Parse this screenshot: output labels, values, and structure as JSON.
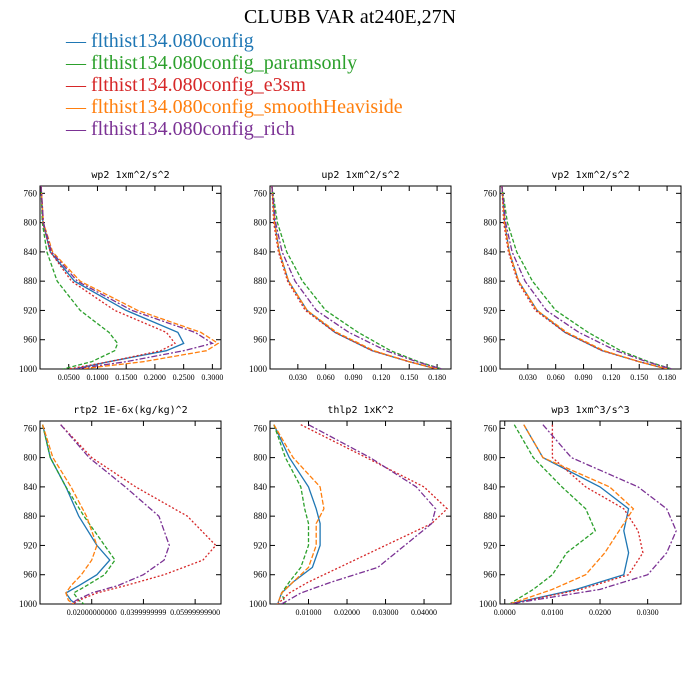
{
  "title": "CLUBB VAR at240E,27N",
  "legend": [
    {
      "label": "flthist134.080config",
      "color": "#1f77b4"
    },
    {
      "label": "flthist134.080config_paramsonly",
      "color": "#2ca02c"
    },
    {
      "label": "flthist134.080config_e3sm",
      "color": "#d62728"
    },
    {
      "label": "flthist134.080config_smoothHeaviside",
      "color": "#ff7f0e"
    },
    {
      "label": "flthist134.080config_rich",
      "color": "#7b3294"
    }
  ],
  "chart_data": [
    {
      "type": "line",
      "title": "wp2  1xm^2/s^2",
      "xlim": [
        0,
        0.315
      ],
      "ylim": [
        1000,
        750
      ],
      "y_inverted": true,
      "xticks": [
        0.05,
        0.1,
        0.15,
        0.2,
        0.25,
        0.3
      ],
      "xtick_labels": [
        "0.0500",
        "0.1000",
        "0.1500",
        "0.2000",
        "0.2500",
        "0.3000"
      ],
      "yticks": [
        760,
        800,
        840,
        880,
        920,
        960,
        1000
      ],
      "ytick_labels": [
        "760",
        "800",
        "840",
        "880",
        "920",
        "960",
        "1000"
      ],
      "series": [
        {
          "name": "flthist134.080config",
          "y": [
            750,
            800,
            840,
            880,
            920,
            950,
            965,
            975,
            990,
            1000
          ],
          "values": [
            0.002,
            0.005,
            0.018,
            0.06,
            0.15,
            0.24,
            0.25,
            0.22,
            0.12,
            0.06
          ]
        },
        {
          "name": "flthist134.080config_paramsonly",
          "y": [
            750,
            800,
            840,
            880,
            920,
            950,
            965,
            975,
            990,
            1000
          ],
          "values": [
            0.002,
            0.004,
            0.012,
            0.03,
            0.07,
            0.12,
            0.135,
            0.13,
            0.09,
            0.04
          ]
        },
        {
          "name": "flthist134.080config_e3sm",
          "y": [
            750,
            800,
            840,
            880,
            920,
            950,
            965,
            975,
            990,
            1000
          ],
          "values": [
            0.002,
            0.005,
            0.018,
            0.055,
            0.13,
            0.22,
            0.235,
            0.21,
            0.12,
            0.05
          ]
        },
        {
          "name": "flthist134.080config_smoothHeaviside",
          "y": [
            750,
            800,
            840,
            880,
            920,
            950,
            965,
            975,
            990,
            1000
          ],
          "values": [
            0.002,
            0.006,
            0.022,
            0.07,
            0.17,
            0.28,
            0.31,
            0.29,
            0.18,
            0.07
          ]
        },
        {
          "name": "flthist134.080config_rich",
          "y": [
            750,
            800,
            840,
            880,
            920,
            950,
            965,
            975,
            990,
            1000
          ],
          "values": [
            0.002,
            0.006,
            0.02,
            0.065,
            0.16,
            0.27,
            0.3,
            0.25,
            0.15,
            0.06
          ]
        }
      ]
    },
    {
      "type": "line",
      "title": "up2  1xm^2/s^2",
      "xlim": [
        0,
        0.195
      ],
      "ylim": [
        1000,
        750
      ],
      "y_inverted": true,
      "xticks": [
        0.03,
        0.06,
        0.09,
        0.12,
        0.15,
        0.18
      ],
      "xtick_labels": [
        "0.030",
        "0.060",
        "0.090",
        "0.120",
        "0.150",
        "0.180"
      ],
      "yticks": [
        760,
        800,
        840,
        880,
        920,
        960,
        1000
      ],
      "ytick_labels": [
        "760",
        "800",
        "840",
        "880",
        "920",
        "960",
        "1000"
      ],
      "series": [
        {
          "name": "flthist134.080config",
          "y": [
            750,
            800,
            840,
            880,
            920,
            950,
            975,
            990,
            1000
          ],
          "values": [
            0.002,
            0.005,
            0.01,
            0.02,
            0.04,
            0.07,
            0.11,
            0.15,
            0.18
          ]
        },
        {
          "name": "flthist134.080config_paramsonly",
          "y": [
            750,
            800,
            840,
            880,
            920,
            950,
            975,
            990,
            1000
          ],
          "values": [
            0.002,
            0.008,
            0.018,
            0.035,
            0.06,
            0.095,
            0.13,
            0.16,
            0.185
          ]
        },
        {
          "name": "flthist134.080config_e3sm",
          "y": [
            750,
            800,
            840,
            880,
            920,
            950,
            975,
            990,
            1000
          ],
          "values": [
            0.002,
            0.004,
            0.009,
            0.019,
            0.038,
            0.07,
            0.11,
            0.15,
            0.18
          ]
        },
        {
          "name": "flthist134.080config_smoothHeaviside",
          "y": [
            750,
            800,
            840,
            880,
            920,
            950,
            975,
            990,
            1000
          ],
          "values": [
            0.002,
            0.005,
            0.01,
            0.02,
            0.04,
            0.072,
            0.112,
            0.15,
            0.18
          ]
        },
        {
          "name": "flthist134.080config_rich",
          "y": [
            750,
            800,
            840,
            880,
            920,
            950,
            975,
            990,
            1000
          ],
          "values": [
            0.002,
            0.006,
            0.013,
            0.027,
            0.05,
            0.085,
            0.125,
            0.158,
            0.185
          ]
        }
      ]
    },
    {
      "type": "line",
      "title": "vp2  1xm^2/s^2",
      "xlim": [
        0,
        0.195
      ],
      "ylim": [
        1000,
        750
      ],
      "y_inverted": true,
      "xticks": [
        0.03,
        0.06,
        0.09,
        0.12,
        0.15,
        0.18
      ],
      "xtick_labels": [
        "0.030",
        "0.060",
        "0.090",
        "0.120",
        "0.150",
        "0.180"
      ],
      "yticks": [
        760,
        800,
        840,
        880,
        920,
        960,
        1000
      ],
      "ytick_labels": [
        "760",
        "800",
        "840",
        "880",
        "920",
        "960",
        "1000"
      ],
      "series": [
        {
          "name": "flthist134.080config",
          "y": [
            750,
            800,
            840,
            880,
            920,
            950,
            975,
            990,
            1000
          ],
          "values": [
            0.002,
            0.005,
            0.01,
            0.02,
            0.04,
            0.07,
            0.11,
            0.15,
            0.18
          ]
        },
        {
          "name": "flthist134.080config_paramsonly",
          "y": [
            750,
            800,
            840,
            880,
            920,
            950,
            975,
            990,
            1000
          ],
          "values": [
            0.002,
            0.008,
            0.018,
            0.035,
            0.06,
            0.095,
            0.13,
            0.16,
            0.185
          ]
        },
        {
          "name": "flthist134.080config_e3sm",
          "y": [
            750,
            800,
            840,
            880,
            920,
            950,
            975,
            990,
            1000
          ],
          "values": [
            0.002,
            0.004,
            0.009,
            0.019,
            0.038,
            0.07,
            0.11,
            0.15,
            0.18
          ]
        },
        {
          "name": "flthist134.080config_smoothHeaviside",
          "y": [
            750,
            800,
            840,
            880,
            920,
            950,
            975,
            990,
            1000
          ],
          "values": [
            0.002,
            0.005,
            0.01,
            0.02,
            0.04,
            0.072,
            0.112,
            0.15,
            0.18
          ]
        },
        {
          "name": "flthist134.080config_rich",
          "y": [
            750,
            800,
            840,
            880,
            920,
            950,
            975,
            990,
            1000
          ],
          "values": [
            0.002,
            0.006,
            0.013,
            0.027,
            0.05,
            0.085,
            0.125,
            0.158,
            0.185
          ]
        }
      ]
    },
    {
      "type": "line",
      "title": "rtp2  1E-6x(kg/kg)^2",
      "xlim": [
        0,
        0.07
      ],
      "ylim": [
        1000,
        750
      ],
      "y_inverted": true,
      "xticks": [
        0.02,
        0.04,
        0.06
      ],
      "xtick_labels": [
        "0.02000000000",
        "0.0399999999",
        "0.05999999900"
      ],
      "yticks": [
        760,
        800,
        840,
        880,
        920,
        960,
        1000
      ],
      "ytick_labels": [
        "760",
        "800",
        "840",
        "880",
        "920",
        "960",
        "1000"
      ],
      "series": [
        {
          "name": "flthist134.080config",
          "y": [
            755,
            800,
            840,
            880,
            920,
            940,
            960,
            975,
            985,
            995,
            1000
          ],
          "values": [
            0.001,
            0.004,
            0.01,
            0.015,
            0.022,
            0.027,
            0.022,
            0.015,
            0.01,
            0.012,
            0.014
          ]
        },
        {
          "name": "flthist134.080config_paramsonly",
          "y": [
            755,
            800,
            840,
            880,
            920,
            940,
            960,
            975,
            985,
            995,
            1000
          ],
          "values": [
            0.001,
            0.004,
            0.01,
            0.017,
            0.025,
            0.029,
            0.025,
            0.018,
            0.013,
            0.015,
            0.017
          ]
        },
        {
          "name": "flthist134.080config_e3sm",
          "y": [
            755,
            800,
            840,
            880,
            920,
            940,
            960,
            975,
            985,
            995,
            1000
          ],
          "values": [
            0.008,
            0.02,
            0.037,
            0.057,
            0.068,
            0.063,
            0.048,
            0.033,
            0.022,
            0.015,
            0.013
          ]
        },
        {
          "name": "flthist134.080config_smoothHeaviside",
          "y": [
            755,
            800,
            840,
            880,
            920,
            940,
            960,
            975,
            985,
            995,
            1000
          ],
          "values": [
            0.001,
            0.005,
            0.012,
            0.018,
            0.022,
            0.02,
            0.016,
            0.012,
            0.01,
            0.011,
            0.013
          ]
        },
        {
          "name": "flthist134.080config_rich",
          "y": [
            755,
            800,
            840,
            880,
            920,
            940,
            960,
            975,
            985,
            995,
            1000
          ],
          "values": [
            0.008,
            0.019,
            0.033,
            0.046,
            0.05,
            0.048,
            0.04,
            0.03,
            0.02,
            0.014,
            0.012
          ]
        }
      ]
    },
    {
      "type": "line",
      "title": "thlp2  1xK^2",
      "xlim": [
        0,
        0.047
      ],
      "ylim": [
        1000,
        750
      ],
      "y_inverted": true,
      "xticks": [
        0.01,
        0.02,
        0.03,
        0.04
      ],
      "xtick_labels": [
        "0.01000",
        "0.02000",
        "0.03000",
        "0.04000"
      ],
      "yticks": [
        760,
        800,
        840,
        880,
        920,
        960,
        1000
      ],
      "ytick_labels": [
        "760",
        "800",
        "840",
        "880",
        "920",
        "960",
        "1000"
      ],
      "series": [
        {
          "name": "flthist134.080config",
          "y": [
            755,
            800,
            840,
            870,
            890,
            920,
            950,
            970,
            985,
            1000
          ],
          "values": [
            0.001,
            0.005,
            0.01,
            0.012,
            0.013,
            0.013,
            0.011,
            0.006,
            0.003,
            0.002
          ]
        },
        {
          "name": "flthist134.080config_paramsonly",
          "y": [
            755,
            800,
            840,
            870,
            890,
            920,
            950,
            970,
            985,
            1000
          ],
          "values": [
            0.001,
            0.004,
            0.008,
            0.009,
            0.01,
            0.01,
            0.008,
            0.005,
            0.003,
            0.004
          ]
        },
        {
          "name": "flthist134.080config_e3sm",
          "y": [
            755,
            800,
            840,
            870,
            890,
            920,
            950,
            970,
            985,
            1000
          ],
          "values": [
            0.008,
            0.025,
            0.04,
            0.046,
            0.042,
            0.03,
            0.018,
            0.01,
            0.005,
            0.002
          ]
        },
        {
          "name": "flthist134.080config_smoothHeaviside",
          "y": [
            755,
            800,
            840,
            870,
            890,
            920,
            950,
            970,
            985,
            1000
          ],
          "values": [
            0.001,
            0.006,
            0.013,
            0.014,
            0.012,
            0.012,
            0.01,
            0.006,
            0.003,
            0.002
          ]
        },
        {
          "name": "flthist134.080config_rich",
          "y": [
            755,
            800,
            840,
            870,
            890,
            920,
            950,
            970,
            985,
            1000
          ],
          "values": [
            0.01,
            0.026,
            0.038,
            0.043,
            0.042,
            0.035,
            0.028,
            0.016,
            0.008,
            0.003
          ]
        }
      ]
    },
    {
      "type": "line",
      "title": "wp3  1xm^3/s^3",
      "xlim": [
        -0.001,
        0.037
      ],
      "ylim": [
        1000,
        750
      ],
      "y_inverted": true,
      "xticks": [
        0.0,
        0.01,
        0.02,
        0.03
      ],
      "xtick_labels": [
        "0.0000",
        "0.0100",
        "0.0200",
        "0.0300"
      ],
      "yticks": [
        760,
        800,
        840,
        880,
        920,
        960,
        1000
      ],
      "ytick_labels": [
        "760",
        "800",
        "840",
        "880",
        "920",
        "960",
        "1000"
      ],
      "series": [
        {
          "name": "flthist134.080config",
          "y": [
            755,
            800,
            840,
            870,
            900,
            930,
            960,
            980,
            1000
          ],
          "values": [
            0.004,
            0.008,
            0.02,
            0.026,
            0.025,
            0.026,
            0.025,
            0.015,
            0.001
          ]
        },
        {
          "name": "flthist134.080config_paramsonly",
          "y": [
            755,
            800,
            840,
            870,
            900,
            930,
            960,
            980,
            1000
          ],
          "values": [
            0.002,
            0.006,
            0.012,
            0.017,
            0.019,
            0.013,
            0.01,
            0.006,
            0.001
          ]
        },
        {
          "name": "flthist134.080config_e3sm",
          "y": [
            755,
            800,
            840,
            870,
            900,
            930,
            960,
            980,
            1000
          ],
          "values": [
            0.01,
            0.01,
            0.017,
            0.025,
            0.028,
            0.029,
            0.026,
            0.016,
            0.001
          ]
        },
        {
          "name": "flthist134.080config_smoothHeaviside",
          "y": [
            755,
            800,
            840,
            870,
            900,
            930,
            960,
            980,
            1000
          ],
          "values": [
            0.004,
            0.008,
            0.022,
            0.027,
            0.024,
            0.021,
            0.017,
            0.01,
            0.001
          ]
        },
        {
          "name": "flthist134.080config_rich",
          "y": [
            755,
            800,
            840,
            870,
            900,
            930,
            960,
            980,
            1000
          ],
          "values": [
            0.008,
            0.014,
            0.028,
            0.034,
            0.036,
            0.034,
            0.03,
            0.02,
            0.001
          ]
        }
      ]
    }
  ]
}
